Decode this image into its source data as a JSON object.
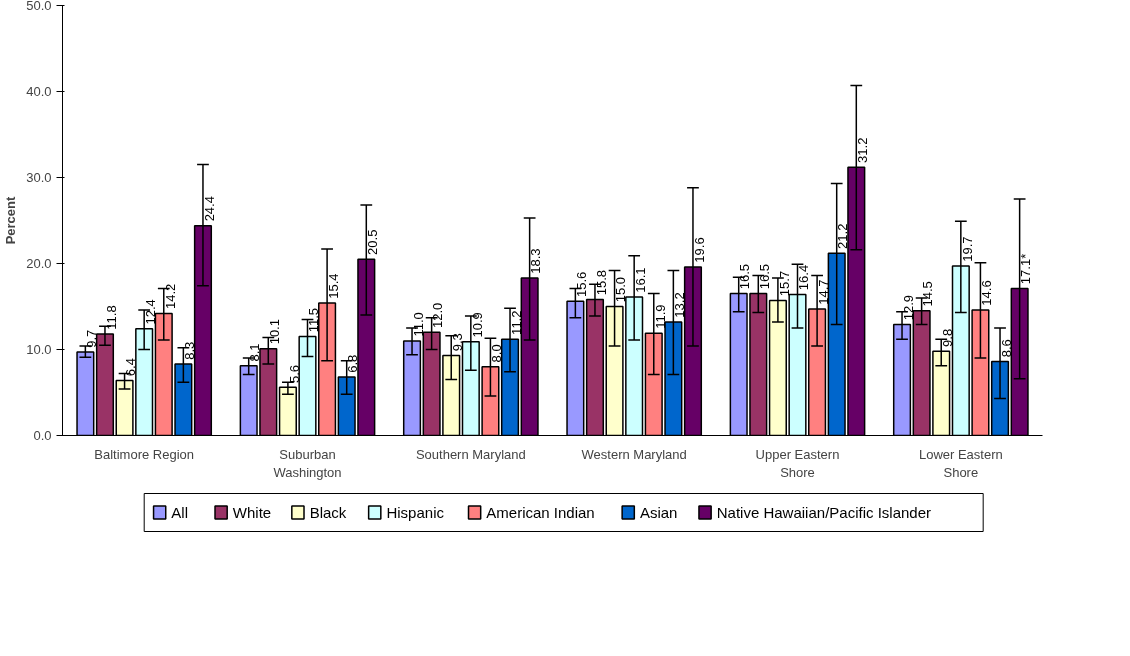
{
  "chart_data": {
    "type": "bar",
    "ylabel": "Percent",
    "categories": [
      "Baltimore Region",
      "Suburban Washington",
      "Southern Maryland",
      "Western Maryland",
      "Upper Eastern Shore",
      "Lower Eastern Shore"
    ],
    "ylim": [
      0,
      50
    ],
    "yticks": [
      {
        "value": 0,
        "label": "0.0"
      },
      {
        "value": 10,
        "label": "10.0"
      },
      {
        "value": 20,
        "label": "20.0"
      },
      {
        "value": 30,
        "label": "30.0"
      },
      {
        "value": 40,
        "label": "40.0"
      },
      {
        "value": 50,
        "label": "50.0"
      }
    ],
    "grid": false,
    "legend": "bottom",
    "series": [
      {
        "name": "All",
        "color": "#9999ff",
        "values": [
          9.7,
          8.1,
          11.0,
          15.6,
          16.5,
          12.9
        ],
        "errors": [
          [
            9.1,
            10.4
          ],
          [
            7.1,
            9.0
          ],
          [
            9.4,
            12.5
          ],
          [
            13.7,
            17.1
          ],
          [
            14.4,
            18.4
          ],
          [
            11.2,
            14.4
          ]
        ],
        "value_labels": [
          "9.7",
          "8.1",
          "11.0",
          "15.6",
          "16.5",
          "12.9"
        ]
      },
      {
        "name": "White",
        "color": "#993366",
        "values": [
          11.8,
          10.1,
          12.0,
          15.8,
          16.5,
          14.5
        ],
        "errors": [
          [
            10.5,
            12.7
          ],
          [
            8.3,
            11.4
          ],
          [
            10.0,
            13.7
          ],
          [
            13.9,
            17.6
          ],
          [
            14.3,
            18.6
          ],
          [
            12.9,
            16.0
          ]
        ],
        "value_labels": [
          "11.8",
          "10.1",
          "12.0",
          "15.8",
          "16.5",
          "14.5"
        ]
      },
      {
        "name": "Black",
        "color": "#ffffcc",
        "values": [
          6.4,
          5.6,
          9.3,
          15.0,
          15.7,
          9.8
        ],
        "errors": [
          [
            5.4,
            7.2
          ],
          [
            4.8,
            6.2
          ],
          [
            6.5,
            11.6
          ],
          [
            10.4,
            19.2
          ],
          [
            13.2,
            18.3
          ],
          [
            8.1,
            11.2
          ]
        ],
        "value_labels": [
          "6.4",
          "5.6",
          "9.3",
          "15.0",
          "15.7",
          "9.8"
        ]
      },
      {
        "name": "Hispanic",
        "color": "#ccffff",
        "values": [
          12.4,
          11.5,
          10.9,
          16.1,
          16.4,
          19.7
        ],
        "errors": [
          [
            10.0,
            14.6
          ],
          [
            9.2,
            13.5
          ],
          [
            7.6,
            13.9
          ],
          [
            11.1,
            20.9
          ],
          [
            12.5,
            19.9
          ],
          [
            14.3,
            24.9
          ]
        ],
        "value_labels": [
          "12.4",
          "11.5",
          "10.9",
          "16.1",
          "16.4",
          "19.7"
        ]
      },
      {
        "name": "American Indian",
        "color": "#ff8080",
        "values": [
          14.2,
          15.4,
          8.0,
          11.9,
          14.7,
          14.6
        ],
        "errors": [
          [
            11.1,
            17.1
          ],
          [
            8.7,
            21.7
          ],
          [
            4.6,
            11.3
          ],
          [
            7.1,
            16.5
          ],
          [
            10.4,
            18.6
          ],
          [
            9.0,
            20.1
          ]
        ],
        "value_labels": [
          "14.2",
          "15.4",
          "8.0",
          "11.9",
          "14.7",
          "14.6"
        ]
      },
      {
        "name": "Asian",
        "color": "#0066cc",
        "values": [
          8.3,
          6.8,
          11.2,
          13.2,
          21.2,
          8.6
        ],
        "errors": [
          [
            6.2,
            10.2
          ],
          [
            4.8,
            8.7
          ],
          [
            7.4,
            14.8
          ],
          [
            7.1,
            19.2
          ],
          [
            12.9,
            29.3
          ],
          [
            4.3,
            12.5
          ]
        ],
        "value_labels": [
          "8.3",
          "6.8",
          "11.2",
          "13.2",
          "21.2",
          "8.6"
        ]
      },
      {
        "name": "Native Hawaiian/Pacific Islander",
        "color": "#660066",
        "values": [
          24.4,
          20.5,
          18.3,
          19.6,
          31.2,
          17.1
        ],
        "errors": [
          [
            17.4,
            31.5
          ],
          [
            14.0,
            26.8
          ],
          [
            11.1,
            25.3
          ],
          [
            10.4,
            28.8
          ],
          [
            21.6,
            40.7
          ],
          [
            6.6,
            27.5
          ]
        ],
        "value_labels": [
          "24.4",
          "20.5",
          "18.3",
          "19.6",
          "31.2",
          "17.1*"
        ]
      }
    ]
  }
}
